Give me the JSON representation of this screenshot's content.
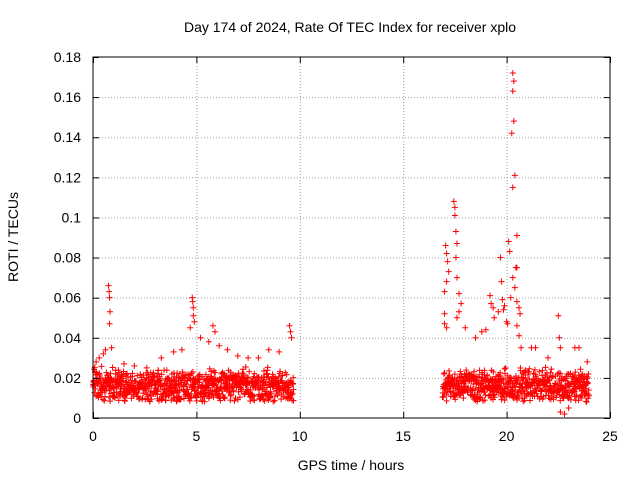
{
  "chart_data": {
    "type": "scatter",
    "title": "Day 174 of 2024, Rate Of TEC Index for receiver xplo",
    "xlabel": "GPS time / hours",
    "ylabel": "ROTI / TECUs",
    "xlim": [
      0,
      25
    ],
    "ylim": [
      0,
      0.18
    ],
    "x_ticks": [
      0,
      5,
      10,
      15,
      20,
      25
    ],
    "x_tick_labels": [
      "0",
      "5",
      "10",
      "15",
      "20",
      "25"
    ],
    "y_ticks": [
      0,
      0.02,
      0.04,
      0.06,
      0.08,
      0.1,
      0.12,
      0.14,
      0.16,
      0.18
    ],
    "y_tick_labels": [
      "0",
      "0.02",
      "0.04",
      "0.06",
      "0.08",
      "0.1",
      "0.12",
      "0.14",
      "0.16",
      "0.18"
    ],
    "grid": true,
    "marker": "+",
    "marker_color": "#ff0000",
    "series": [
      {
        "name": "ROTI",
        "coverage_hours": [
          [
            0,
            9.7
          ],
          [
            16.9,
            24
          ]
        ],
        "baseline_range": [
          0.008,
          0.026
        ],
        "points": [
          [
            0.15,
            0.028
          ],
          [
            0.3,
            0.03
          ],
          [
            0.5,
            0.032
          ],
          [
            0.6,
            0.034
          ],
          [
            0.75,
            0.066
          ],
          [
            0.78,
            0.063
          ],
          [
            0.8,
            0.06
          ],
          [
            0.82,
            0.053
          ],
          [
            0.8,
            0.047
          ],
          [
            0.9,
            0.035
          ],
          [
            1.5,
            0.027
          ],
          [
            2.0,
            0.026
          ],
          [
            2.6,
            0.025
          ],
          [
            3.3,
            0.03
          ],
          [
            3.9,
            0.033
          ],
          [
            4.3,
            0.034
          ],
          [
            4.7,
            0.045
          ],
          [
            4.8,
            0.06
          ],
          [
            4.82,
            0.058
          ],
          [
            4.85,
            0.055
          ],
          [
            4.85,
            0.051
          ],
          [
            4.9,
            0.048
          ],
          [
            5.2,
            0.04
          ],
          [
            5.6,
            0.038
          ],
          [
            5.8,
            0.046
          ],
          [
            5.9,
            0.043
          ],
          [
            6.1,
            0.036
          ],
          [
            6.5,
            0.034
          ],
          [
            7.0,
            0.031
          ],
          [
            7.5,
            0.03
          ],
          [
            8.0,
            0.03
          ],
          [
            8.5,
            0.034
          ],
          [
            9.0,
            0.033
          ],
          [
            9.5,
            0.046
          ],
          [
            9.55,
            0.043
          ],
          [
            9.6,
            0.04
          ],
          [
            17.05,
            0.086
          ],
          [
            17.1,
            0.082
          ],
          [
            17.15,
            0.078
          ],
          [
            17.2,
            0.073
          ],
          [
            17.1,
            0.068
          ],
          [
            17.0,
            0.063
          ],
          [
            17.0,
            0.052
          ],
          [
            17.0,
            0.047
          ],
          [
            17.1,
            0.045
          ],
          [
            17.45,
            0.108
          ],
          [
            17.5,
            0.105
          ],
          [
            17.5,
            0.101
          ],
          [
            17.55,
            0.093
          ],
          [
            17.6,
            0.087
          ],
          [
            17.55,
            0.08
          ],
          [
            17.6,
            0.07
          ],
          [
            17.7,
            0.062
          ],
          [
            17.8,
            0.057
          ],
          [
            17.7,
            0.053
          ],
          [
            17.6,
            0.05
          ],
          [
            18.0,
            0.045
          ],
          [
            18.5,
            0.04
          ],
          [
            18.8,
            0.043
          ],
          [
            19.0,
            0.044
          ],
          [
            19.2,
            0.061
          ],
          [
            19.25,
            0.057
          ],
          [
            19.35,
            0.055
          ],
          [
            19.4,
            0.05
          ],
          [
            19.6,
            0.053
          ],
          [
            19.7,
            0.08
          ],
          [
            19.75,
            0.068
          ],
          [
            19.8,
            0.059
          ],
          [
            19.85,
            0.054
          ],
          [
            19.9,
            0.056
          ],
          [
            20.0,
            0.048
          ],
          [
            20.05,
            0.047
          ],
          [
            20.1,
            0.088
          ],
          [
            20.15,
            0.083
          ],
          [
            20.3,
            0.172
          ],
          [
            20.35,
            0.168
          ],
          [
            20.3,
            0.163
          ],
          [
            20.35,
            0.148
          ],
          [
            20.25,
            0.142
          ],
          [
            20.4,
            0.121
          ],
          [
            20.3,
            0.115
          ],
          [
            20.5,
            0.091
          ],
          [
            20.45,
            0.075
          ],
          [
            20.5,
            0.075
          ],
          [
            20.3,
            0.07
          ],
          [
            20.4,
            0.065
          ],
          [
            20.2,
            0.06
          ],
          [
            20.5,
            0.058
          ],
          [
            20.6,
            0.055
          ],
          [
            20.65,
            0.052
          ],
          [
            20.5,
            0.046
          ],
          [
            20.6,
            0.041
          ],
          [
            20.7,
            0.035
          ],
          [
            21.2,
            0.035
          ],
          [
            21.4,
            0.035
          ],
          [
            22.0,
            0.03
          ],
          [
            22.5,
            0.051
          ],
          [
            22.55,
            0.04
          ],
          [
            22.6,
            0.035
          ],
          [
            23.3,
            0.035
          ],
          [
            23.5,
            0.035
          ],
          [
            23.9,
            0.028
          ],
          [
            22.6,
            0.003
          ],
          [
            22.8,
            0.002
          ],
          [
            23.0,
            0.005
          ]
        ]
      }
    ]
  }
}
